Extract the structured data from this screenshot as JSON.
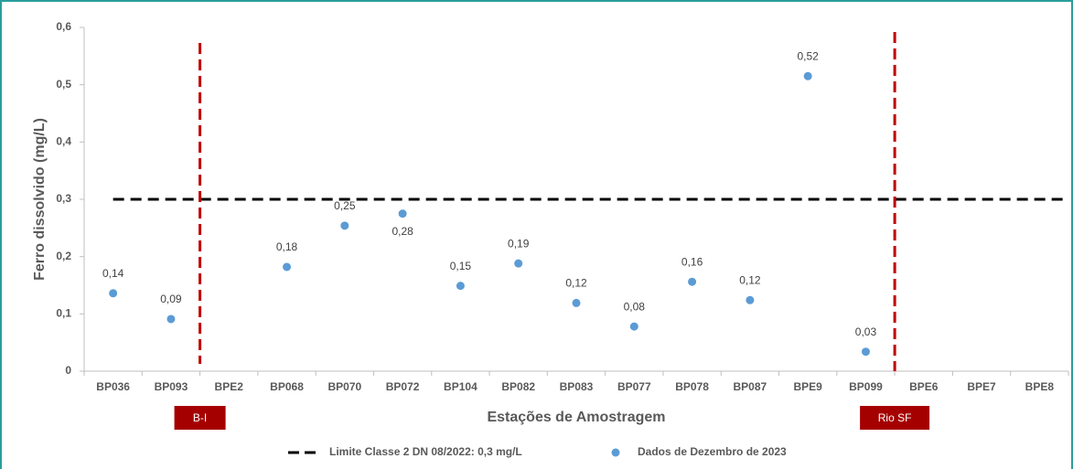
{
  "chart_data": {
    "type": "scatter",
    "x_label": "Estações de Amostragem",
    "y_label": "Ferro dissolvido (mg/L)",
    "categories": [
      "BP036",
      "BP093",
      "BPE2",
      "BP068",
      "BP070",
      "BP072",
      "BP104",
      "BP082",
      "BP083",
      "BP077",
      "BP078",
      "BP087",
      "BPE9",
      "BP099",
      "BPE6",
      "BPE7",
      "BPE8"
    ],
    "series": [
      {
        "name": "Dados de Dezembro de 2023",
        "color": "#5b9bd5",
        "values": [
          0.136,
          0.091,
          null,
          0.182,
          0.254,
          0.275,
          0.149,
          0.188,
          0.119,
          0.078,
          0.156,
          0.124,
          0.515,
          0.034,
          null,
          null,
          null
        ],
        "value_labels": [
          "0,14",
          "0,09",
          null,
          "0,18",
          "0,25",
          "0,28",
          "0,15",
          "0,19",
          "0,12",
          "0,08",
          "0,16",
          "0,12",
          "0,52",
          "0,03",
          null,
          null,
          null
        ]
      }
    ],
    "reference_line": {
      "name": "Limite Classe 2 DN 08/2022: 0,3 mg/L",
      "value": 0.3,
      "color": "#000000"
    },
    "dividers": [
      {
        "label": "B-I",
        "before": "BPE2",
        "color": "#c00000"
      },
      {
        "label": "Rio SF",
        "before": "BPE6",
        "color": "#c00000"
      }
    ],
    "ylim": [
      0,
      0.6
    ],
    "yticks": [
      0,
      {
        "value": 0.1,
        "label": "0,1"
      },
      {
        "value": 0.2,
        "label": "0,2"
      },
      {
        "value": 0.3,
        "label": "0,3"
      },
      {
        "value": 0.4,
        "label": "0,4"
      },
      {
        "value": 0.5,
        "label": "0,5"
      },
      {
        "value": 0.6,
        "label": "0,6"
      }
    ],
    "grid": false
  }
}
